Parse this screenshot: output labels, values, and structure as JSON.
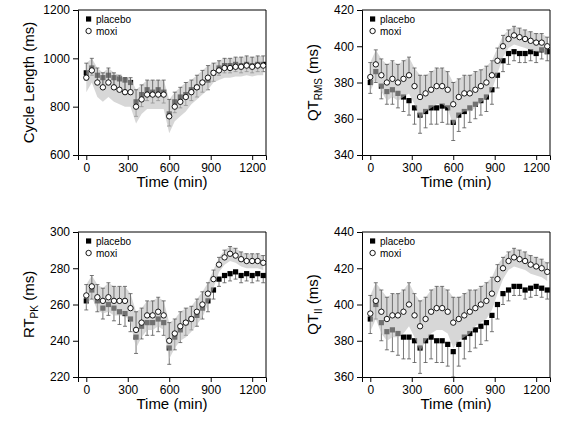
{
  "chart_data": [
    {
      "type": "scatter",
      "y_label": [
        {
          "text": "Cycle Length (ms)"
        }
      ],
      "x_label": "Time (min)",
      "x": [
        0,
        40,
        80,
        120,
        160,
        200,
        240,
        280,
        320,
        360,
        400,
        440,
        480,
        520,
        560,
        600,
        640,
        680,
        720,
        760,
        800,
        840,
        880,
        920,
        960,
        1000,
        1040,
        1080,
        1120,
        1160,
        1200,
        1240,
        1280
      ],
      "xlim": [
        -60,
        1300
      ],
      "xticks": [
        0,
        300,
        600,
        900,
        1200
      ],
      "ylim": [
        600,
        1200
      ],
      "yticks": [
        600,
        800,
        1000,
        1200
      ],
      "legend": "top-left",
      "series": [
        {
          "name": "placebo",
          "color": "#000000",
          "marker": "square",
          "values": [
            940,
            960,
            930,
            920,
            930,
            920,
            915,
            910,
            900,
            820,
            850,
            870,
            860,
            870,
            860,
            770,
            820,
            840,
            850,
            870,
            880,
            900,
            910,
            940,
            960,
            970,
            970,
            975,
            970,
            975,
            970,
            975,
            975
          ],
          "errors": [
            30,
            30,
            40,
            40,
            40,
            45,
            45,
            50,
            50,
            60,
            50,
            45,
            45,
            45,
            45,
            50,
            45,
            45,
            45,
            45,
            40,
            40,
            40,
            35,
            30,
            30,
            30,
            30,
            30,
            30,
            30,
            30,
            30
          ]
        },
        {
          "name": "moxi",
          "color": "#000000",
          "marker": "open-circle",
          "values": [
            920,
            950,
            900,
            880,
            900,
            880,
            870,
            860,
            860,
            800,
            830,
            850,
            850,
            850,
            850,
            760,
            800,
            820,
            840,
            860,
            880,
            900,
            920,
            940,
            950,
            960,
            960,
            965,
            965,
            970,
            965,
            970,
            970
          ],
          "errors": [
            60,
            50,
            60,
            60,
            60,
            60,
            60,
            60,
            60,
            70,
            60,
            60,
            60,
            60,
            60,
            70,
            60,
            60,
            60,
            50,
            50,
            50,
            50,
            40,
            40,
            40,
            40,
            40,
            40,
            40,
            40,
            40,
            40
          ]
        }
      ]
    },
    {
      "type": "scatter",
      "y_label": [
        {
          "text": "QT"
        },
        {
          "text": "RMS",
          "sub": true
        },
        {
          "text": " (ms)"
        }
      ],
      "x_label": "Time (min)",
      "x": [
        0,
        40,
        80,
        120,
        160,
        200,
        240,
        280,
        320,
        360,
        400,
        440,
        480,
        520,
        560,
        600,
        640,
        680,
        720,
        760,
        800,
        840,
        880,
        920,
        960,
        1000,
        1040,
        1080,
        1120,
        1160,
        1200,
        1240,
        1280
      ],
      "xlim": [
        -60,
        1300
      ],
      "xticks": [
        0,
        300,
        600,
        900,
        1200
      ],
      "ylim": [
        340,
        420
      ],
      "yticks": [
        340,
        360,
        380,
        400,
        420
      ],
      "legend": "top-left",
      "series": [
        {
          "name": "placebo",
          "color": "#000000",
          "marker": "square",
          "values": [
            380,
            386,
            378,
            375,
            376,
            374,
            372,
            370,
            366,
            362,
            364,
            366,
            366,
            367,
            366,
            358,
            362,
            364,
            366,
            368,
            370,
            372,
            376,
            384,
            392,
            396,
            397,
            396,
            396,
            397,
            396,
            398,
            397
          ],
          "errors": [
            6,
            6,
            7,
            7,
            8,
            8,
            8,
            8,
            9,
            10,
            9,
            9,
            9,
            9,
            9,
            10,
            9,
            9,
            8,
            8,
            8,
            8,
            8,
            7,
            6,
            6,
            5,
            5,
            5,
            5,
            5,
            5,
            5
          ]
        },
        {
          "name": "moxi",
          "color": "#000000",
          "marker": "open-circle",
          "values": [
            383,
            390,
            384,
            380,
            382,
            380,
            382,
            384,
            378,
            372,
            374,
            376,
            378,
            378,
            376,
            368,
            372,
            374,
            374,
            376,
            378,
            380,
            384,
            392,
            400,
            404,
            406,
            405,
            404,
            403,
            402,
            402,
            400
          ],
          "errors": [
            8,
            8,
            9,
            10,
            10,
            10,
            10,
            10,
            10,
            12,
            10,
            10,
            10,
            10,
            10,
            12,
            10,
            10,
            10,
            10,
            9,
            9,
            8,
            7,
            6,
            5,
            5,
            5,
            5,
            5,
            5,
            5,
            5
          ]
        }
      ]
    },
    {
      "type": "scatter",
      "y_label": [
        {
          "text": "RT"
        },
        {
          "text": "PK",
          "sub": true
        },
        {
          "text": " (ms)"
        }
      ],
      "x_label": "Time (min)",
      "x": [
        0,
        40,
        80,
        120,
        160,
        200,
        240,
        280,
        320,
        360,
        400,
        440,
        480,
        520,
        560,
        600,
        640,
        680,
        720,
        760,
        800,
        840,
        880,
        920,
        960,
        1000,
        1040,
        1080,
        1120,
        1160,
        1200,
        1240,
        1280
      ],
      "xlim": [
        -60,
        1300
      ],
      "xticks": [
        0,
        300,
        600,
        900,
        1200
      ],
      "ylim": [
        220,
        300
      ],
      "yticks": [
        220,
        240,
        260,
        280,
        300
      ],
      "legend": "top-left",
      "series": [
        {
          "name": "placebo",
          "color": "#000000",
          "marker": "square",
          "values": [
            262,
            268,
            262,
            258,
            260,
            258,
            256,
            255,
            252,
            242,
            248,
            250,
            250,
            252,
            250,
            236,
            242,
            246,
            250,
            252,
            254,
            258,
            262,
            268,
            274,
            276,
            277,
            278,
            276,
            277,
            276,
            277,
            276
          ],
          "errors": [
            5,
            5,
            6,
            6,
            6,
            7,
            7,
            7,
            7,
            9,
            7,
            7,
            7,
            7,
            7,
            9,
            7,
            7,
            7,
            6,
            6,
            6,
            6,
            5,
            4,
            4,
            4,
            4,
            4,
            4,
            4,
            4,
            4
          ]
        },
        {
          "name": "moxi",
          "color": "#000000",
          "marker": "open-circle",
          "values": [
            265,
            270,
            264,
            262,
            264,
            262,
            262,
            262,
            258,
            246,
            250,
            254,
            254,
            256,
            254,
            240,
            244,
            248,
            250,
            252,
            256,
            260,
            266,
            274,
            282,
            286,
            288,
            287,
            285,
            284,
            284,
            284,
            283
          ],
          "errors": [
            6,
            6,
            7,
            7,
            8,
            8,
            8,
            8,
            8,
            10,
            8,
            8,
            8,
            8,
            8,
            10,
            8,
            8,
            8,
            7,
            7,
            7,
            6,
            5,
            4,
            4,
            4,
            4,
            4,
            4,
            4,
            4,
            4
          ]
        }
      ]
    },
    {
      "type": "scatter",
      "y_label": [
        {
          "text": "QT"
        },
        {
          "text": "II",
          "sub": true
        },
        {
          "text": " (ms)"
        }
      ],
      "x_label": "Time (min)",
      "x": [
        0,
        40,
        80,
        120,
        160,
        200,
        240,
        280,
        320,
        360,
        400,
        440,
        480,
        520,
        560,
        600,
        640,
        680,
        720,
        760,
        800,
        840,
        880,
        920,
        960,
        1000,
        1040,
        1080,
        1120,
        1160,
        1200,
        1240,
        1280
      ],
      "xlim": [
        -60,
        1300
      ],
      "xticks": [
        0,
        300,
        600,
        900,
        1200
      ],
      "ylim": [
        360,
        440
      ],
      "yticks": [
        360,
        380,
        400,
        420,
        440
      ],
      "legend": "top-left",
      "series": [
        {
          "name": "placebo",
          "color": "#000000",
          "marker": "square",
          "values": [
            392,
            400,
            390,
            385,
            386,
            384,
            382,
            382,
            380,
            376,
            380,
            382,
            380,
            380,
            378,
            374,
            378,
            382,
            384,
            386,
            388,
            390,
            394,
            400,
            406,
            408,
            410,
            410,
            408,
            409,
            410,
            409,
            408
          ],
          "errors": [
            8,
            8,
            10,
            10,
            12,
            12,
            12,
            12,
            12,
            14,
            12,
            12,
            12,
            12,
            12,
            14,
            12,
            12,
            10,
            10,
            10,
            10,
            9,
            8,
            6,
            6,
            5,
            5,
            5,
            5,
            5,
            5,
            5
          ]
        },
        {
          "name": "moxi",
          "color": "#000000",
          "marker": "open-circle",
          "values": [
            395,
            402,
            396,
            392,
            394,
            394,
            396,
            400,
            394,
            388,
            392,
            396,
            398,
            398,
            396,
            390,
            392,
            394,
            396,
            398,
            400,
            402,
            406,
            414,
            420,
            424,
            426,
            425,
            424,
            422,
            421,
            420,
            418
          ],
          "errors": [
            10,
            10,
            12,
            12,
            12,
            12,
            12,
            12,
            12,
            14,
            12,
            12,
            12,
            12,
            12,
            14,
            12,
            12,
            12,
            10,
            10,
            10,
            9,
            8,
            6,
            5,
            5,
            5,
            5,
            5,
            5,
            5,
            5
          ]
        }
      ]
    }
  ]
}
